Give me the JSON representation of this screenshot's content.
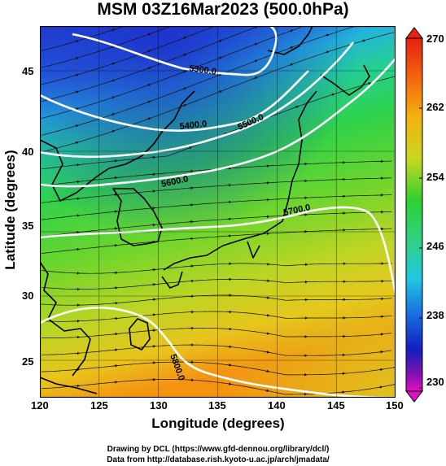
{
  "title": "MSM 03Z16Mar2023 (500.0hPa)",
  "axes": {
    "xlabel": "Longitude (degrees)",
    "ylabel": "Latitude  (degrees)",
    "x_ticks": [
      "120",
      "125",
      "130",
      "135",
      "140",
      "145",
      "150"
    ],
    "y_ticks": [
      "45",
      "40",
      "35",
      "30",
      "25"
    ]
  },
  "colorbar": {
    "ticks": [
      "270",
      "262",
      "254",
      "246",
      "238",
      "230"
    ],
    "range": [
      230,
      270
    ]
  },
  "contours": [
    {
      "value": 5300,
      "label": "5300.0"
    },
    {
      "value": 5400,
      "label": "5400.0"
    },
    {
      "value": 5500,
      "label": "5500.0"
    },
    {
      "value": 5600,
      "label": "5600.0"
    },
    {
      "value": 5700,
      "label": "5700.0"
    },
    {
      "value": 5800,
      "label": "5800.0"
    }
  ],
  "credits": {
    "line1": "Drawing by DCL (https://www.gfd-dennou.org/library/dcl/)",
    "line2": "Data from http://database.rish.kyoto-u.ac.jp/arch/jmadata/"
  },
  "colors": {
    "cold": "#1a3ed0",
    "cyan": "#20c8d8",
    "green": "#2ed24a",
    "yellow": "#e6d020",
    "warm": "#f08a10",
    "contour": "#ffffff",
    "coast": "#000000"
  }
}
